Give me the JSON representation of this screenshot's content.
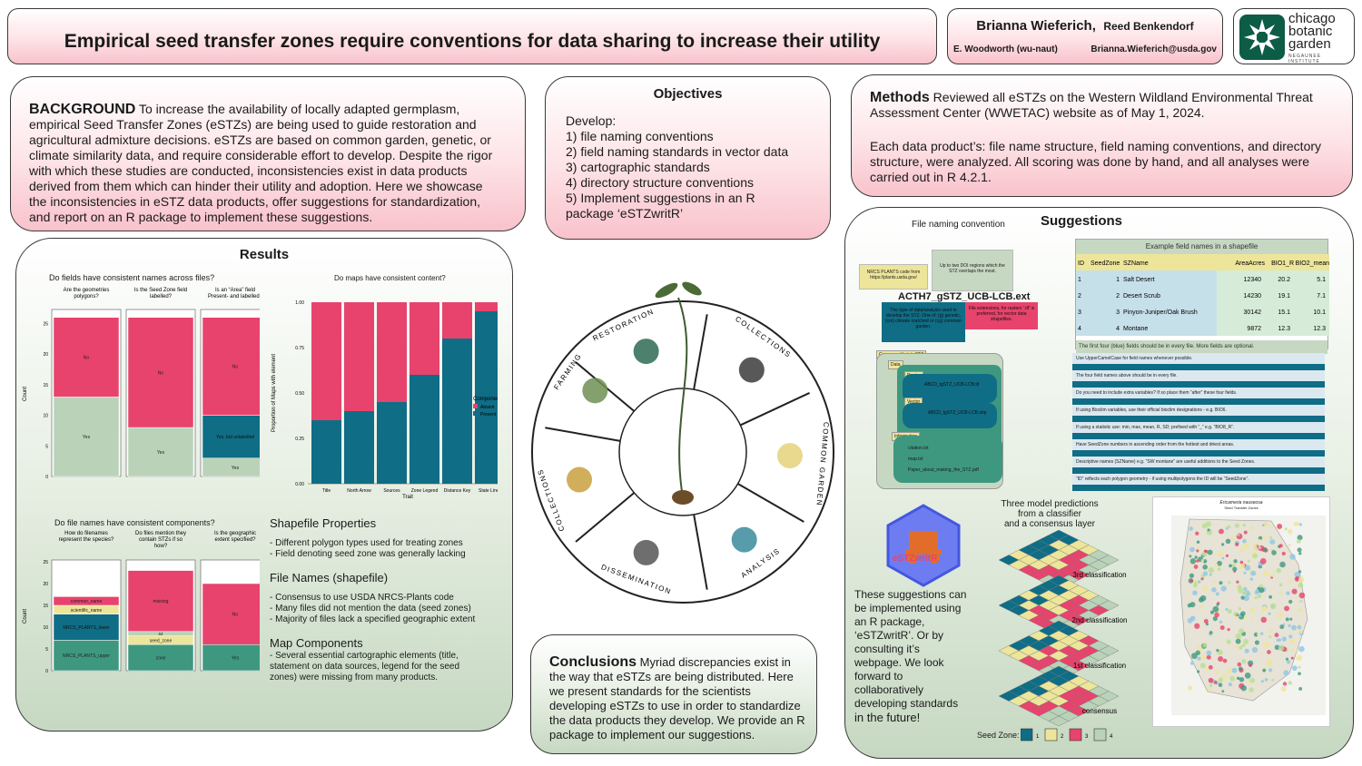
{
  "header": {
    "title": "Empirical seed transfer zones require conventions for data sharing to increase their utility",
    "author1": "Brianna Wieferich,",
    "author2": "Reed Benkendorf",
    "author3": "E. Woodworth (wu-naut)",
    "email": "Brianna.Wieferich@usda.gov",
    "logo_line1": "chicago",
    "logo_line2": "botanic",
    "logo_line3": "garden",
    "logo_sub": "NEGAUNEE INSTITUTE"
  },
  "background": {
    "label": "BACKGROUND",
    "text": "To increase the availability of locally adapted germplasm, empirical Seed Transfer Zones (eSTZs) are being used to guide restoration and agricultural admixture decisions. eSTZs are based on common garden, genetic, or climate similarity data, and require considerable effort to develop. Despite the rigor with which these studies are conducted, inconsistencies exist in data products derived from them which can hinder their utility and adoption. Here we showcase the inconsistencies in eSTZ data products, offer suggestions for standardization, and report on an R package to implement these suggestions."
  },
  "objectives": {
    "title": "Objectives",
    "items": [
      "Develop:",
      "1) file naming conventions",
      "2) field naming standards in vector data",
      "3) cartographic standards",
      "4) directory structure conventions",
      "5) Implement suggestions in an R",
      "package ‘eSTZwritR’"
    ]
  },
  "methods": {
    "label": "Methods",
    "p1": "Reviewed all eSTZs on the Western Wildland Environmental Threat Assessment Center (WWETAC) website as of May 1, 2024.",
    "p2": "Each data product’s: file name structure, field naming conventions, and directory structure, were analyzed. All scoring was done by hand, and all analyses were carried out in R 4.2.1."
  },
  "results": {
    "title": "Results",
    "chart1_title": "Do fields have consistent names across files?",
    "chart2_title": "Do maps have consistent content?",
    "chart3_title": "Do file names have consistent components?",
    "shapefile_h": "Shapefile Properties",
    "shapefile_items": [
      "- Different polygon types used for treating zones",
      "- Field denoting seed zone was generally lacking"
    ],
    "filenames_h": "File Names (shapefile)",
    "filenames_items": [
      "- Consensus to use USDA NRCS-Plants code",
      "- Many files did not mention the data (seed zones)",
      "- Majority of files lack a specified geographic extent"
    ],
    "mapcomp_h": "Map Components",
    "mapcomp_items": [
      "- Several essential cartographic elements (title,",
      "statement on data sources, legend for the seed",
      "zones) were missing from many products."
    ]
  },
  "chart_data": [
    {
      "type": "bar",
      "title": "Do fields have consistent names across files?",
      "ylabel": "Count",
      "ylim": [
        0,
        27
      ],
      "yticks": [
        0,
        5,
        10,
        15,
        20,
        25
      ],
      "panels": [
        {
          "title": "Are the geometries polygons?",
          "segments": [
            {
              "label": "Yes",
              "value": 13
            },
            {
              "label": "No",
              "value": 13
            }
          ]
        },
        {
          "title": "Is the Seed Zone field labelled?",
          "segments": [
            {
              "label": "Yes",
              "value": 8
            },
            {
              "label": "No",
              "value": 18
            }
          ]
        },
        {
          "title": "Is an “Area” field Present- and labelled?",
          "segments": [
            {
              "label": "Yes",
              "value": 3
            },
            {
              "label": "Yes, but unlabelled",
              "value": 7
            },
            {
              "label": "No",
              "value": 16
            }
          ]
        }
      ]
    },
    {
      "type": "bar",
      "title": "Do maps have consistent content?",
      "xlabel": "Trait",
      "ylabel": "Proportion of Maps with element",
      "ylim": [
        0,
        1
      ],
      "yticks": [
        "0.00",
        "0.25",
        "0.50",
        "0.75",
        "1.00"
      ],
      "categories": [
        "Title",
        "North Arrow",
        "Sources",
        "Zone Legend",
        "Distance Key",
        "State Lines"
      ],
      "series": [
        {
          "name": "Present",
          "values": [
            0.35,
            0.4,
            0.45,
            0.6,
            0.8,
            0.95
          ]
        },
        {
          "name": "Absent",
          "values": [
            0.65,
            0.6,
            0.55,
            0.4,
            0.2,
            0.05
          ]
        }
      ],
      "legend": {
        "title": "Component",
        "items": [
          "Absent",
          "Present"
        ]
      }
    },
    {
      "type": "bar",
      "title": "Do file names have consistent components?",
      "ylabel": "Count",
      "ylim": [
        0,
        25
      ],
      "yticks": [
        0,
        5,
        10,
        15,
        20,
        25
      ],
      "panels": [
        {
          "title": "How do filenames represent the species?",
          "segments": [
            {
              "label": "NRCS_PLANTS_upper",
              "value": 7
            },
            {
              "label": "NRCS_PLANTS_lower",
              "value": 6
            },
            {
              "label": "scientific_name",
              "value": 2
            },
            {
              "label": "common_name",
              "value": 2
            }
          ]
        },
        {
          "title": "Do files mention they contain STZs if so how?",
          "segments": [
            {
              "label": "zone",
              "value": 6
            },
            {
              "label": "seed_zone",
              "value": 2
            },
            {
              "label": "sz",
              "value": 1
            },
            {
              "label": "missing",
              "value": 14
            }
          ]
        },
        {
          "title": "Is the geographic extent specified?",
          "segments": [
            {
              "label": "Yes",
              "value": 6
            },
            {
              "label": "No",
              "value": 14
            }
          ]
        }
      ]
    }
  ],
  "wheel": {
    "labels": [
      "RESTORATION",
      "COLLECTIONS",
      "COMMON GARDEN",
      "ANALYSIS",
      "DISSEMINATION",
      "COLLECTIONS",
      "FARMING"
    ]
  },
  "suggestions": {
    "title": "Suggestions",
    "fn_title": "File naming convention",
    "fn_note1": "NRCS PLANTS code from https://plants.usda.gov/",
    "fn_note2": "Up to two DOI regions which the STZ overlaps the most.",
    "fn_name": "ACTH7_gSTZ_UCB-LCB.ext",
    "fn_note3": "The type of data/analysis used to develop the STZ. One of: (g) genetic, (cm) climate matched or (cg) common garden.",
    "fn_note4": "File extensions, for rasters ‘.tif’ is preferred, for vector data shapefiles.",
    "dir_root": "Genus_epithet_tgSTZ",
    "dir_data": "Data",
    "dir_raster": "Raster",
    "dir_raster_file": "ABCD_tgSTZ_UCB-LCB.tif",
    "dir_vector": "Vector",
    "dir_vector_file": "ABCD_tgSTZ_UCB-LCB.shp",
    "dir_info": "Information",
    "dir_info_files": [
      "citation.txt",
      "map.txt",
      "Paper_about_making_the_STZ.pdf"
    ],
    "table_title": "Example field names in a shapefile",
    "table_headers": [
      "ID",
      "SeedZone",
      "SZName",
      "AreaAcres",
      "BIO1_R",
      "BIO2_mean"
    ],
    "table_rows": [
      [
        "1",
        "1",
        "Salt Desert",
        "12340",
        "20.2",
        "5.1"
      ],
      [
        "2",
        "2",
        "Desert Scrub",
        "14230",
        "19.1",
        "7.1"
      ],
      [
        "3",
        "3",
        "Pinyon-Juniper/Oak Brush",
        "30142",
        "15.1",
        "10.1"
      ],
      [
        "4",
        "4",
        "Montane",
        "9872",
        "12.3",
        "12.3"
      ]
    ],
    "table_footer": "The first four (blue) fields should be in every file. More fields are optional.",
    "rules": [
      "Use UpperCamelCase for field names whenever possible.",
      "The four field names above should be in every file.",
      "Do you need to include extra variables? If so place them “after” these four fields.",
      "If using Bioclim variables, use their official bioclim designations - e.g. BIO6.",
      "If using a statistic use: min, max, mean, R, SD; prefixed with “_” e.g. “BIO8_R”.",
      "Have SeedZone numbers in ascending order from the hottest and driest areas.",
      "Descriptive names (SZName) e.g. “SW montane” are useful additions to the Seed Zones.",
      "“ID” reflects each polygon geometry - if using multipolygons the ID will be “SeedZone”."
    ],
    "pkg_name": "eSTZwritR",
    "pkg_text": [
      "These suggestions can",
      "be implemented using",
      "an R package,",
      "‘eSTZwritR’. Or by",
      "consulting it’s",
      "webpage. We look",
      "forward to",
      "collaboratively",
      "developing standards"
    ],
    "pkg_last": "in the future!",
    "model_title": [
      "Three model predictions",
      "from a classifier",
      "and a consensus layer"
    ],
    "model_labels": [
      "3rd classification",
      "2nd classification",
      "1st classification",
      "consensus"
    ],
    "seed_zone_label": "Seed Zone:",
    "seed_zone_values": [
      "1",
      "2",
      "3",
      "4"
    ],
    "map_title": "Ericameria nauseosa",
    "map_subtitle": "Seed Transfer Zones"
  },
  "conclusions": {
    "label": "Conclusions",
    "text": "Myriad discrepancies exist in the way that eSTZs are being distributed. Here we present standards for the scientists developing eSTZs to use in order to standardize the data products they develop.  We provide an R package to implement our suggestions."
  },
  "colors": {
    "pink": "#e8436d",
    "teal": "#0f6d86",
    "sage": "#b9d2b8",
    "yellow": "#ede59a",
    "green": "#3e9880"
  }
}
